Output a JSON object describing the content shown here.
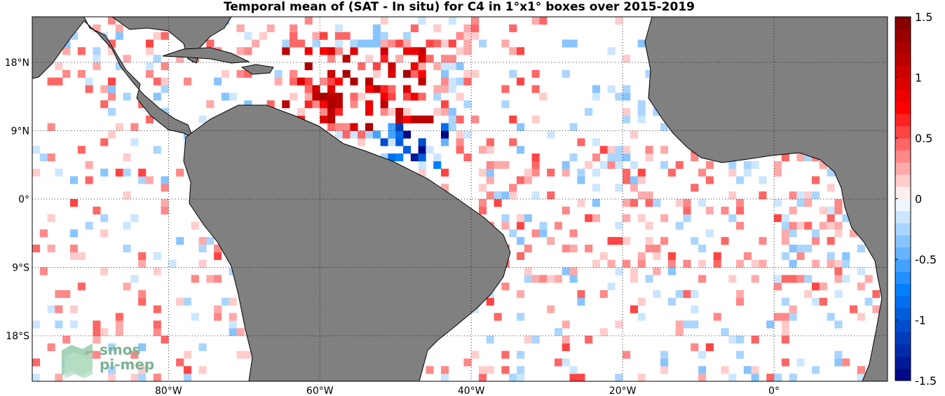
{
  "map": {
    "title": "Temporal mean of (SAT - In situ) for C4 in 1°x1° boxes over 2015-2019",
    "region": "Tropical Atlantic",
    "projection": "equirectangular",
    "lon_range": [
      -98,
      15
    ],
    "lat_range": [
      -24,
      24
    ],
    "grid": "dotted",
    "land_color": "#808080",
    "lon_ticks": [
      {
        "value": -80,
        "label": "80°W"
      },
      {
        "value": -60,
        "label": "60°W"
      },
      {
        "value": -40,
        "label": "40°W"
      },
      {
        "value": -20,
        "label": "20°W"
      },
      {
        "value": 0,
        "label": "0°"
      }
    ],
    "lat_ticks": [
      {
        "value": 18,
        "label": "18°N"
      },
      {
        "value": 9,
        "label": "9°N"
      },
      {
        "value": 0,
        "label": "0°"
      },
      {
        "value": -9,
        "label": "9°S"
      },
      {
        "value": -18,
        "label": "18°S"
      }
    ]
  },
  "colorbar": {
    "range": [
      -1.5,
      1.5
    ],
    "levels": 30,
    "colormap": "blue-white-red",
    "neg_color": "#000080",
    "pos_color": "#800000",
    "ticks": [
      {
        "value": 1.5,
        "label": "1.5"
      },
      {
        "value": 1,
        "label": "1"
      },
      {
        "value": 0.5,
        "label": "0.5"
      },
      {
        "value": 0,
        "label": "0"
      },
      {
        "value": -0.5,
        "label": "-0.5"
      },
      {
        "value": -1,
        "label": "-1"
      },
      {
        "value": -1.5,
        "label": "-1.5"
      }
    ]
  },
  "logo": {
    "line1": "smos",
    "line2": "pi-mep"
  }
}
